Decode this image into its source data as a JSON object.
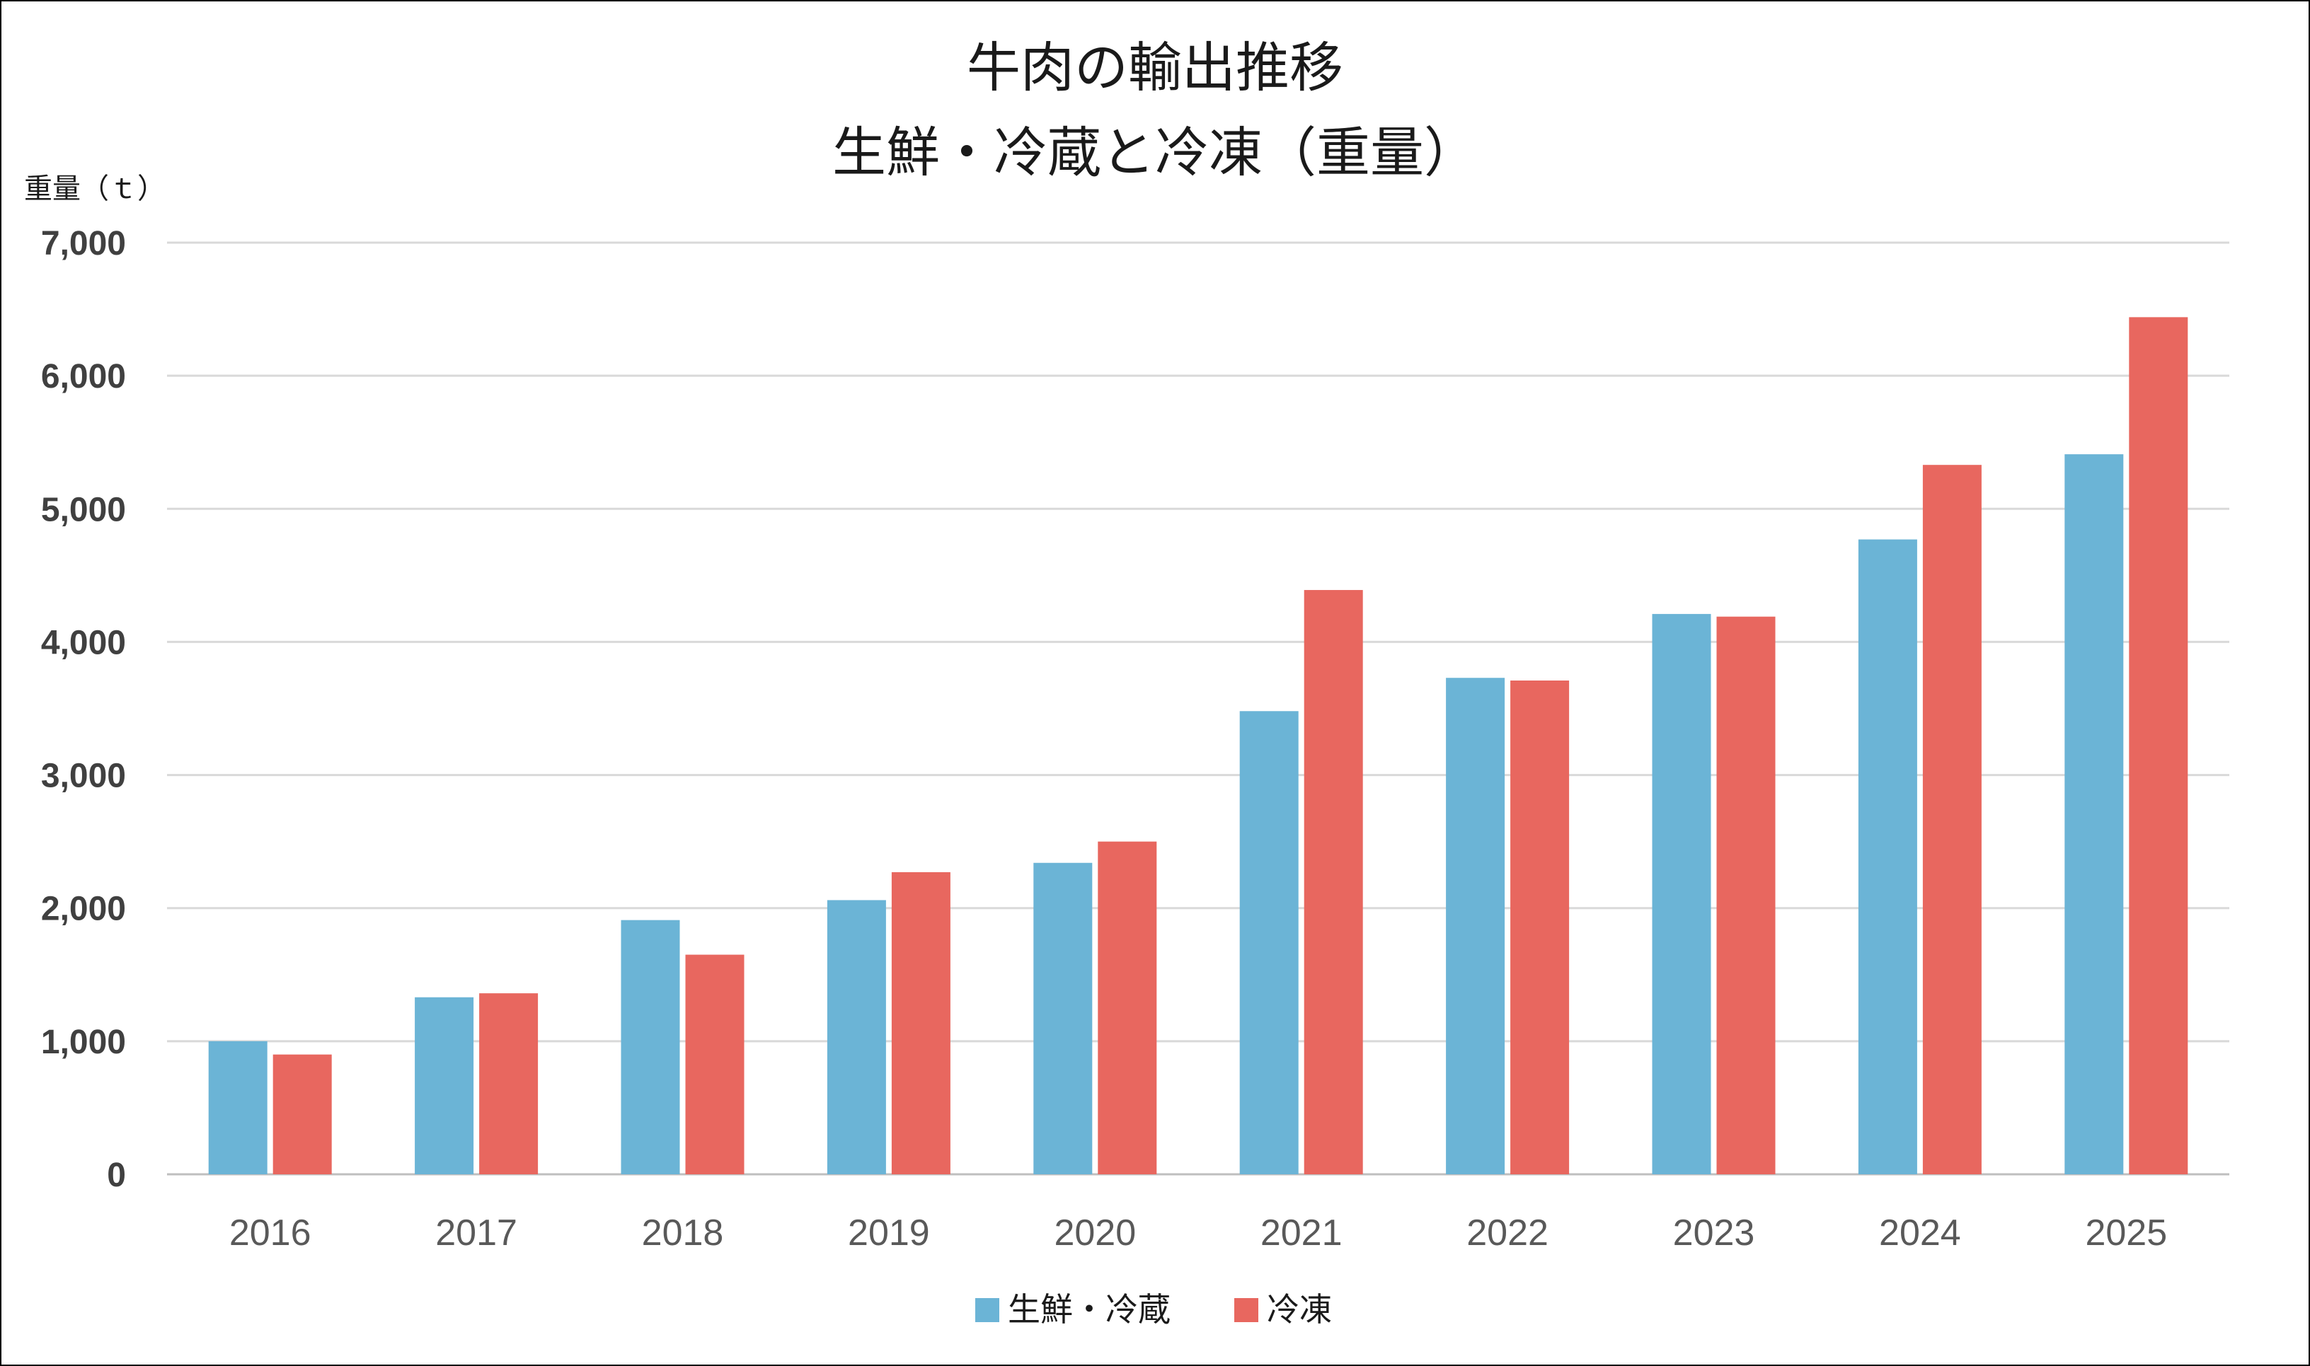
{
  "chart_data": {
    "type": "bar",
    "title_lines": [
      "牛肉の輸出推移",
      "生鮮・冷蔵と冷凍（重量）"
    ],
    "ylabel": "重量（ｔ）",
    "xlabel": "",
    "ylim": [
      0,
      7000
    ],
    "yticks": [
      0,
      1000,
      2000,
      3000,
      4000,
      5000,
      6000,
      7000
    ],
    "ytick_labels": [
      "0",
      "1,000",
      "2,000",
      "3,000",
      "4,000",
      "5,000",
      "6,000",
      "7,000"
    ],
    "categories": [
      "2016",
      "2017",
      "2018",
      "2019",
      "2020",
      "2021",
      "2022",
      "2023",
      "2024",
      "2025"
    ],
    "series": [
      {
        "name": "生鮮・冷蔵",
        "color": "#6bb4d6",
        "values": [
          1000,
          1330,
          1910,
          2060,
          2340,
          3480,
          3730,
          4210,
          4770,
          5410
        ]
      },
      {
        "name": "冷凍",
        "color": "#e8675f",
        "values": [
          900,
          1360,
          1650,
          2270,
          2500,
          4390,
          3710,
          4190,
          5330,
          6440
        ]
      }
    ],
    "grid": true,
    "gridline_color": "#d9d9d9",
    "legend_position": "bottom"
  }
}
